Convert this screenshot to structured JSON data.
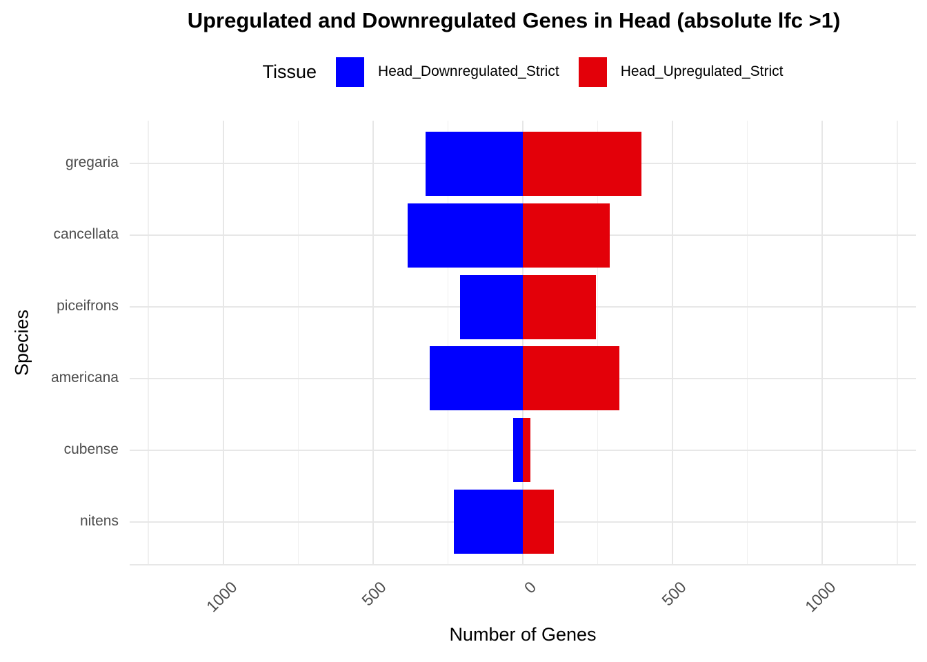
{
  "title": "Upregulated and Downregulated Genes in Head (absolute lfc >1)",
  "legend": {
    "title": "Tissue",
    "items": [
      {
        "label": "Head_Downregulated_Strict",
        "color": "#0000FF"
      },
      {
        "label": "Head_Upregulated_Strict",
        "color": "#E30009"
      }
    ]
  },
  "chart_data": {
    "type": "bar",
    "orientation": "horizontal-diverging",
    "title": "Upregulated and Downregulated Genes in Head (absolute lfc >1)",
    "xlabel": "Number of Genes",
    "ylabel": "Species",
    "categories": [
      "gregaria",
      "cancellata",
      "piceifrons",
      "americana",
      "cubense",
      "nitens"
    ],
    "series": [
      {
        "name": "Head_Downregulated_Strict",
        "color": "#0000FF",
        "direction": "left",
        "values": [
          325,
          385,
          209,
          311,
          32,
          231
        ]
      },
      {
        "name": "Head_Upregulated_Strict",
        "color": "#E30009",
        "direction": "right",
        "values": [
          396,
          290,
          243,
          322,
          25,
          104
        ]
      }
    ],
    "xlim": [
      -1312.5,
      1312.5
    ],
    "x_major_ticks": [
      -1000,
      -500,
      0,
      500,
      1000
    ],
    "x_major_tick_labels": [
      "1000",
      "500",
      "0",
      "500",
      "1000"
    ],
    "x_minor_ticks": [
      -1250,
      -750,
      -250,
      250,
      750,
      1250
    ],
    "grid": true,
    "legend_position": "top",
    "colors": {
      "downregulated": "#0000FF",
      "upregulated": "#E30009",
      "grid_major": "#E7E7E7",
      "grid_minor": "#F0F0F0",
      "tick_text": "#4D4D4D",
      "axis_text": "#000000",
      "background": "#FFFFFF"
    }
  }
}
